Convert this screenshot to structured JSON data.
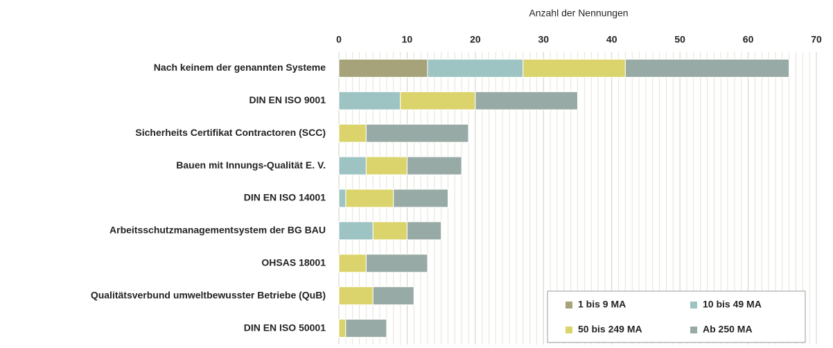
{
  "chart_data": {
    "type": "stacked_barh",
    "xlabel": "Anzahl der Nennungen",
    "categories": [
      "Nach keinem der genannten Systeme",
      "DIN EN ISO 9001",
      "Sicherheits Certifikat Contractoren (SCC)",
      "Bauen mit Innungs-Qualität E. V.",
      "DIN EN ISO 14001",
      "Arbeitsschutzmanagementsystem der BG BAU",
      "OHSAS 18001",
      "Qualitätsverbund umweltbewusster Betriebe (QuB)",
      "DIN EN ISO 50001"
    ],
    "series": [
      {
        "name": "1 bis 9 MA",
        "color": "#a6a37b",
        "values": [
          13,
          0,
          0,
          0,
          0,
          0,
          0,
          0,
          0
        ]
      },
      {
        "name": "10 bis 49 MA",
        "color": "#9dc3c3",
        "values": [
          14,
          9,
          0,
          4,
          1,
          5,
          0,
          0,
          0
        ]
      },
      {
        "name": "50 bis 249 MA",
        "color": "#dbd46c",
        "values": [
          15,
          11,
          4,
          6,
          7,
          5,
          4,
          5,
          1
        ]
      },
      {
        "name": "Ab 250 MA",
        "color": "#98aaa5",
        "values": [
          24,
          15,
          15,
          8,
          8,
          5,
          9,
          6,
          6
        ]
      }
    ],
    "xlim": [
      0,
      70
    ],
    "xticks": [
      0,
      10,
      20,
      30,
      40,
      50,
      60,
      70
    ],
    "grid": true,
    "minor_grid": true,
    "legend": "lower right"
  }
}
